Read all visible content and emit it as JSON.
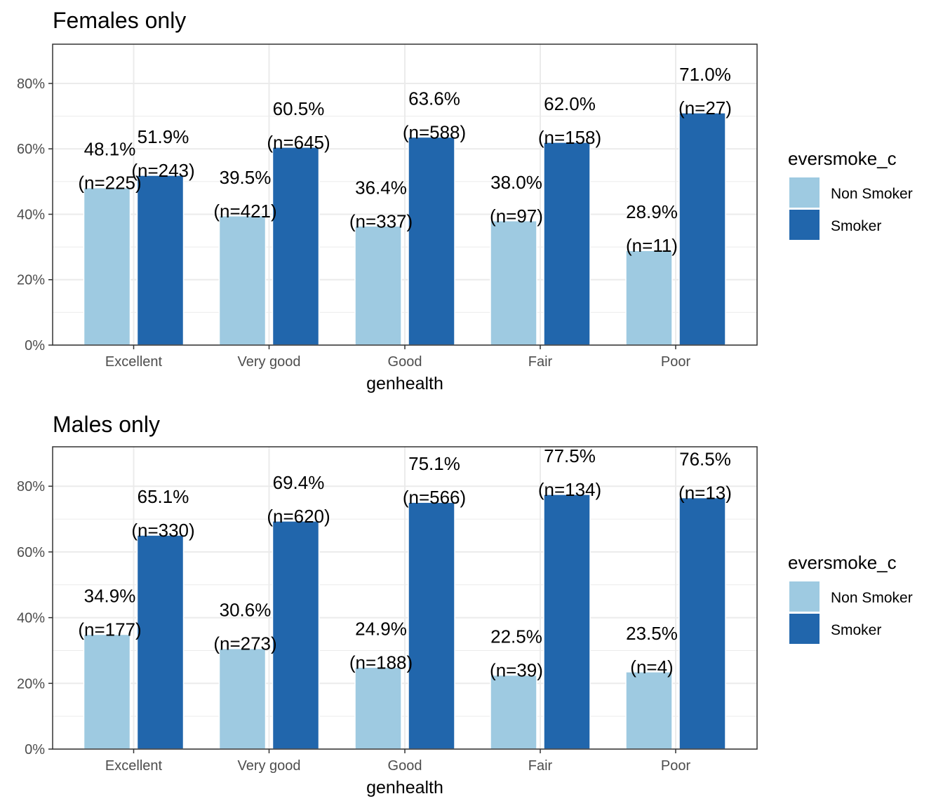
{
  "colors": {
    "non_smoker": "#9ECAE1",
    "smoker": "#2166AC",
    "grid": "#EBEBEB",
    "border": "#333333"
  },
  "chart_data": [
    {
      "type": "bar",
      "title": "Females only",
      "xlabel": "genhealth",
      "ylabel": "",
      "categories": [
        "Excellent",
        "Very good",
        "Good",
        "Fair",
        "Poor"
      ],
      "ylim": [
        0,
        0.92
      ],
      "yticks": [
        0,
        0.2,
        0.4,
        0.6,
        0.8
      ],
      "ytick_labels": [
        "0%",
        "20%",
        "40%",
        "60%",
        "80%"
      ],
      "grid": true,
      "legend": {
        "title": "eversmoke_c",
        "position": "right",
        "items": [
          "Non Smoker",
          "Smoker"
        ]
      },
      "series": [
        {
          "name": "Non Smoker",
          "values": [
            0.481,
            0.395,
            0.364,
            0.38,
            0.289
          ],
          "pct_labels": [
            "48.1%",
            "39.5%",
            "36.4%",
            "38.0%",
            "28.9%"
          ],
          "n_labels": [
            "(n=225)",
            "(n=421)",
            "(n=337)",
            "(n=97)",
            "(n=11)"
          ]
        },
        {
          "name": "Smoker",
          "values": [
            0.519,
            0.605,
            0.636,
            0.62,
            0.71
          ],
          "pct_labels": [
            "51.9%",
            "60.5%",
            "63.6%",
            "62.0%",
            "71.0%"
          ],
          "n_labels": [
            "(n=243)",
            "(n=645)",
            "(n=588)",
            "(n=158)",
            "(n=27)"
          ]
        }
      ]
    },
    {
      "type": "bar",
      "title": "Males only",
      "xlabel": "genhealth",
      "ylabel": "",
      "categories": [
        "Excellent",
        "Very good",
        "Good",
        "Fair",
        "Poor"
      ],
      "ylim": [
        0,
        0.92
      ],
      "yticks": [
        0,
        0.2,
        0.4,
        0.6,
        0.8
      ],
      "ytick_labels": [
        "0%",
        "20%",
        "40%",
        "60%",
        "80%"
      ],
      "grid": true,
      "legend": {
        "title": "eversmoke_c",
        "position": "right",
        "items": [
          "Non Smoker",
          "Smoker"
        ]
      },
      "series": [
        {
          "name": "Non Smoker",
          "values": [
            0.349,
            0.306,
            0.249,
            0.225,
            0.235
          ],
          "pct_labels": [
            "34.9%",
            "30.6%",
            "24.9%",
            "22.5%",
            "23.5%"
          ],
          "n_labels": [
            "(n=177)",
            "(n=273)",
            "(n=188)",
            "(n=39)",
            "(n=4)"
          ]
        },
        {
          "name": "Smoker",
          "values": [
            0.651,
            0.694,
            0.751,
            0.775,
            0.765
          ],
          "pct_labels": [
            "65.1%",
            "69.4%",
            "75.1%",
            "77.5%",
            "76.5%"
          ],
          "n_labels": [
            "(n=330)",
            "(n=620)",
            "(n=566)",
            "(n=134)",
            "(n=13)"
          ]
        }
      ]
    }
  ]
}
